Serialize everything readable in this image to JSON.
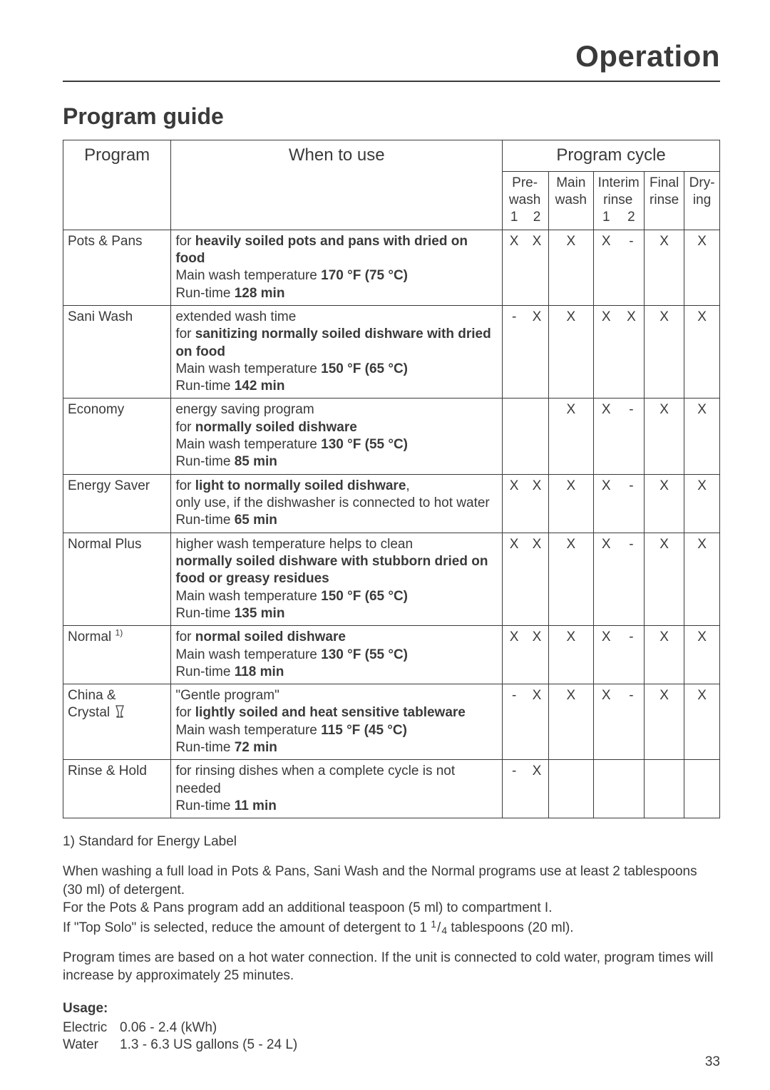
{
  "page": {
    "top_title": "Operation",
    "section_title": "Program guide",
    "page_number": "33"
  },
  "table": {
    "head": {
      "program": "Program",
      "when": "When to use",
      "cycle": "Program cycle",
      "prewash": "Pre-\nwash",
      "prewash1": "1",
      "prewash2": "2",
      "mainwash": "Main\nwash",
      "interim": "Interim\nrinse",
      "interim1": "1",
      "interim2": "2",
      "final": "Final\nrinse",
      "drying": "Dry-\ning"
    },
    "rows": [
      {
        "program": "Pots & Pans",
        "desc_parts": [
          {
            "t": "for ",
            "b": false
          },
          {
            "t": "heavily soiled pots and pans with dried on food",
            "b": true
          },
          {
            "br": true
          },
          {
            "t": "Main wash temperature ",
            "b": false
          },
          {
            "t": "170 °F (75 °C)",
            "b": true
          },
          {
            "br": true
          },
          {
            "t": "Run-time ",
            "b": false
          },
          {
            "t": "128 min",
            "b": true
          }
        ],
        "pw1": "X",
        "pw2": "X",
        "main": "X",
        "ir1": "X",
        "ir2": "-",
        "final": "X",
        "dry": "X"
      },
      {
        "program": "Sani Wash",
        "desc_parts": [
          {
            "t": "extended wash time",
            "b": false
          },
          {
            "br": true
          },
          {
            "t": "for ",
            "b": false
          },
          {
            "t": "sanitizing normally soiled dishware with dried on food",
            "b": true
          },
          {
            "br": true
          },
          {
            "t": "Main wash temperature ",
            "b": false
          },
          {
            "t": "150 °F (65 °C)",
            "b": true
          },
          {
            "br": true
          },
          {
            "t": "Run-time ",
            "b": false
          },
          {
            "t": "142 min",
            "b": true
          }
        ],
        "pw1": "-",
        "pw2": "X",
        "main": "X",
        "ir1": "X",
        "ir2": "X",
        "final": "X",
        "dry": "X"
      },
      {
        "program": "Economy",
        "desc_parts": [
          {
            "t": "energy saving program",
            "b": false
          },
          {
            "br": true
          },
          {
            "t": "for ",
            "b": false
          },
          {
            "t": "normally soiled dishware",
            "b": true
          },
          {
            "br": true
          },
          {
            "t": "Main wash temperature ",
            "b": false
          },
          {
            "t": "130 °F (55 °C)",
            "b": true
          },
          {
            "br": true
          },
          {
            "t": "Run-time ",
            "b": false
          },
          {
            "t": "85 min",
            "b": true
          }
        ],
        "pw1": "",
        "pw2": "",
        "main": "X",
        "ir1": "X",
        "ir2": "-",
        "final": "X",
        "dry": "X"
      },
      {
        "program": "Energy Saver",
        "desc_parts": [
          {
            "t": "for ",
            "b": false
          },
          {
            "t": "light to normally soiled dishware",
            "b": true
          },
          {
            "t": ",",
            "b": false
          },
          {
            "br": true
          },
          {
            "t": "only use, if the dishwasher is connected to hot water",
            "b": false
          },
          {
            "br": true
          },
          {
            "t": "Run-time ",
            "b": false
          },
          {
            "t": "65 min",
            "b": true
          }
        ],
        "pw1": "X",
        "pw2": "X",
        "main": "X",
        "ir1": "X",
        "ir2": "-",
        "final": "X",
        "dry": "X"
      },
      {
        "program": "Normal Plus",
        "desc_parts": [
          {
            "t": "higher wash temperature helps to clean",
            "b": false
          },
          {
            "br": true
          },
          {
            "t": "normally soiled dishware with stubborn dried on food or greasy residues",
            "b": true
          },
          {
            "br": true
          },
          {
            "t": "Main wash temperature ",
            "b": false
          },
          {
            "t": "150 °F (65 °C)",
            "b": true
          },
          {
            "br": true
          },
          {
            "t": "Run-time ",
            "b": false
          },
          {
            "t": "135 min",
            "b": true
          }
        ],
        "pw1": "X",
        "pw2": "X",
        "main": "X",
        "ir1": "X",
        "ir2": "-",
        "final": "X",
        "dry": "X"
      },
      {
        "program": "Normal",
        "program_sup": "1)",
        "desc_parts": [
          {
            "t": "for ",
            "b": false
          },
          {
            "t": "normal soiled dishware",
            "b": true
          },
          {
            "br": true
          },
          {
            "t": "Main wash temperature ",
            "b": false
          },
          {
            "t": "130 °F (55 °C)",
            "b": true
          },
          {
            "br": true
          },
          {
            "t": "Run-time ",
            "b": false
          },
          {
            "t": "118 min",
            "b": true
          }
        ],
        "pw1": "X",
        "pw2": "X",
        "main": "X",
        "ir1": "X",
        "ir2": "-",
        "final": "X",
        "dry": "X"
      },
      {
        "program": "China &\nCrystal",
        "program_glass": true,
        "desc_parts": [
          {
            "t": "\"Gentle program\"",
            "b": false
          },
          {
            "br": true
          },
          {
            "t": "for ",
            "b": false
          },
          {
            "t": "lightly soiled and heat sensitive tableware",
            "b": true
          },
          {
            "br": true
          },
          {
            "t": "Main wash temperature ",
            "b": false
          },
          {
            "t": "115 °F (45 °C)",
            "b": true
          },
          {
            "br": true
          },
          {
            "t": "Run-time ",
            "b": false
          },
          {
            "t": "72 min",
            "b": true
          }
        ],
        "pw1": "-",
        "pw2": "X",
        "main": "X",
        "ir1": "X",
        "ir2": "-",
        "final": "X",
        "dry": "X"
      },
      {
        "program": "Rinse & Hold",
        "desc_parts": [
          {
            "t": "for rinsing dishes when a complete cycle is not needed",
            "b": false
          },
          {
            "br": true
          },
          {
            "t": "Run-time ",
            "b": false
          },
          {
            "t": "11 min",
            "b": true
          }
        ],
        "pw1": "-",
        "pw2": "X",
        "main": "",
        "ir1": "",
        "ir2": "",
        "final": "",
        "dry": ""
      }
    ]
  },
  "footnotes": {
    "f1": "1) Standard for Energy Label",
    "p1": "When washing a full load in Pots & Pans, Sani Wash and the Normal programs use at least 2 tablespoons (30 ml) of detergent.",
    "p2": "For the Pots & Pans program add an additional teaspoon (5 ml) to compartment I.",
    "p3a": "If \"Top Solo\" is selected, reduce the amount of detergent to 1 ",
    "p3_frac_n": "1",
    "p3_frac_d": "4",
    "p3b": "  tablespoons (20 ml).",
    "p4": "Program times are based on a hot water connection. If the unit is connected to cold water, program times will increase by approximately 25 minutes.",
    "usage_label": "Usage:",
    "usage_electric_k": "Electric",
    "usage_electric_v": "0.06 - 2.4 (kWh)",
    "usage_water_k": "Water",
    "usage_water_v": "1.3 - 6.3 US gallons (5 - 24 L)"
  }
}
